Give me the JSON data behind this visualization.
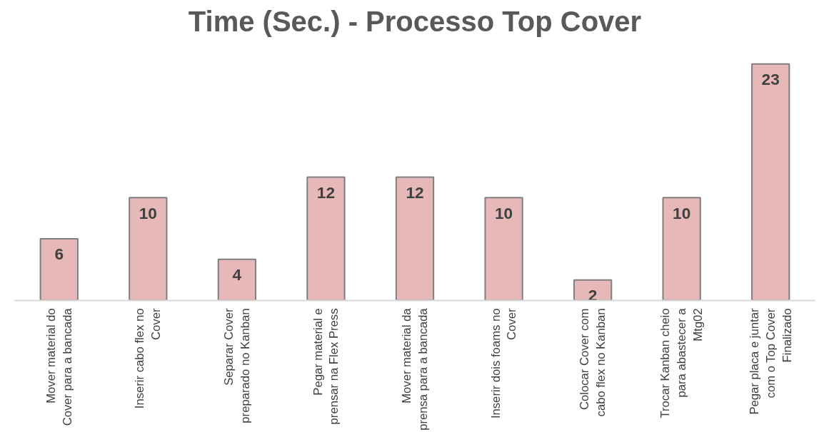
{
  "chart_data": {
    "type": "bar",
    "title": "Time (Sec.) - Processo Top Cover",
    "categories": [
      "Mover material do\nCover para a bancada",
      "Inserir cabo flex no\nCover",
      "Separar Cover\npreparado no Kanban",
      "Pegar material e\nprensar na Flex Press",
      "Mover material da\nprensa para a bancada",
      "Inserir dois foams no\nCover",
      "Colocar Cover com\ncabo flex no Kanban",
      "Trocar Kanban cheio\npara abastecer a\nMtg02",
      "Pegar placa e juntar\ncom o Top Cover\nFinalizado"
    ],
    "values": [
      6,
      10,
      4,
      12,
      12,
      10,
      2,
      10,
      23
    ],
    "color": "#e6b8b7",
    "data_labels": true,
    "grid": false,
    "tick_labels": "x"
  }
}
